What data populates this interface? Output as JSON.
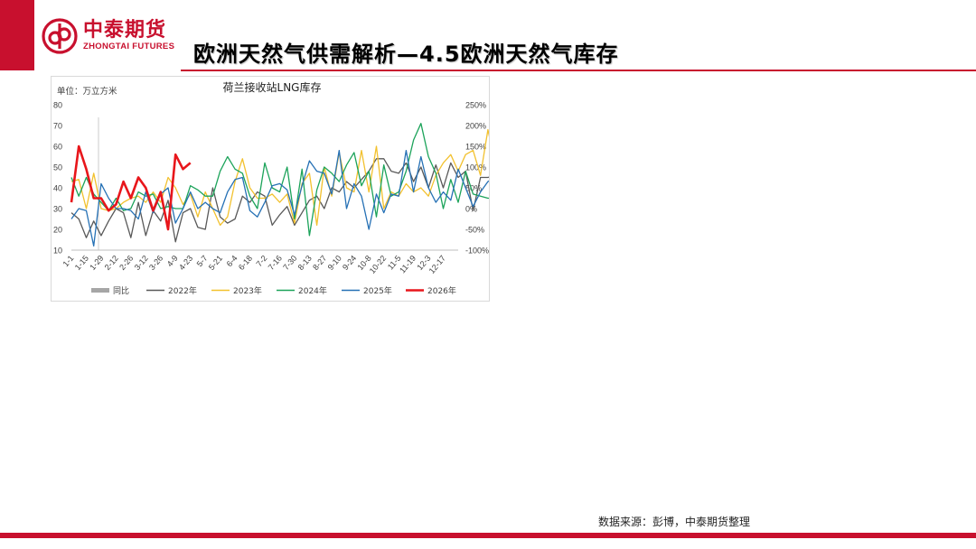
{
  "header": {
    "logo_cn": "中泰期货",
    "logo_en": "ZHONGTAI FUTURES",
    "title": "欧洲天然气供需解析—4.5欧洲天然气库存"
  },
  "colors": {
    "brand": "#c8102e",
    "yoy": "#a6a6a6",
    "s2022": "#595959",
    "s2023": "#f2c12e",
    "s2024": "#1ca35a",
    "s2025": "#2671b5",
    "s2026": "#e8161b"
  },
  "chart_data": {
    "type": "line",
    "title": "荷兰接收站LNG库存",
    "unit_label": "单位：万立方米",
    "y_left": {
      "min": 10,
      "max": 80,
      "ticks": [
        "80",
        "70",
        "60",
        "50",
        "40",
        "30",
        "20",
        "10"
      ]
    },
    "y_right": {
      "min": -100,
      "max": 250,
      "ticks": [
        "250%",
        "200%",
        "150%",
        "100%",
        "50%",
        "0%",
        "-50%",
        "-100%"
      ]
    },
    "x_ticks": [
      "1-1",
      "1-15",
      "1-29",
      "2-12",
      "2-26",
      "3-12",
      "3-26",
      "4-9",
      "4-23",
      "5-7",
      "5-21",
      "6-4",
      "6-18",
      "7-2",
      "7-16",
      "7-30",
      "8-13",
      "8-27",
      "9-10",
      "9-24",
      "10-8",
      "10-22",
      "11-5",
      "11-19",
      "12-3",
      "12-17"
    ],
    "legend": [
      "同比",
      "2022年",
      "2023年",
      "2024年",
      "2025年",
      "2026年"
    ],
    "series": [
      {
        "name": "2022年",
        "values": [
          28,
          25,
          16,
          24,
          17,
          24,
          30,
          28,
          16,
          33,
          17,
          29,
          24,
          34,
          14,
          28,
          30,
          21,
          20,
          40,
          26,
          23,
          25,
          36,
          33,
          38,
          36,
          22,
          27,
          31,
          22,
          28,
          34,
          36,
          30,
          40,
          38,
          43,
          40,
          44,
          48,
          54,
          54,
          48,
          47,
          52,
          43,
          50,
          40,
          51,
          40,
          52,
          45,
          48,
          29,
          45,
          45,
          46
        ]
      },
      {
        "name": "2023年",
        "values": [
          43,
          44,
          30,
          47,
          30,
          29,
          30,
          33,
          35,
          36,
          33,
          38,
          33,
          45,
          40,
          32,
          37,
          26,
          38,
          30,
          22,
          26,
          43,
          54,
          40,
          35,
          35,
          37,
          33,
          37,
          23,
          42,
          47,
          22,
          50,
          36,
          57,
          40,
          38,
          58,
          38,
          60,
          30,
          38,
          36,
          42,
          38,
          40,
          36,
          46,
          52,
          56,
          48,
          56,
          58,
          46,
          68,
          51,
          47,
          51,
          58,
          43
        ]
      },
      {
        "name": "2024年",
        "values": [
          45,
          36,
          45,
          37,
          33,
          29,
          35,
          29,
          30,
          38,
          36,
          37,
          30,
          31,
          30,
          30,
          41,
          39,
          36,
          36,
          48,
          55,
          49,
          47,
          36,
          30,
          52,
          40,
          38,
          50,
          25,
          49,
          17,
          39,
          50,
          47,
          43,
          51,
          57,
          41,
          48,
          26,
          51,
          36,
          38,
          48,
          63,
          71,
          55,
          47,
          30,
          44,
          33,
          48,
          37,
          36,
          35,
          35
        ]
      },
      {
        "name": "2025年",
        "values": [
          25,
          30,
          29,
          12,
          42,
          35,
          30,
          30,
          29,
          25,
          38,
          28,
          37,
          40,
          23,
          30,
          38,
          30,
          33,
          30,
          28,
          38,
          44,
          45,
          29,
          26,
          33,
          41,
          42,
          39,
          27,
          41,
          53,
          48,
          47,
          37,
          58,
          30,
          42,
          36,
          20,
          37,
          28,
          37,
          36,
          58,
          38,
          55,
          40,
          33,
          38,
          34,
          49,
          40,
          31,
          38,
          43,
          45
        ]
      },
      {
        "name": "2026年",
        "values": [
          33,
          60,
          49,
          35,
          35,
          29,
          32,
          43,
          35,
          45,
          40,
          29,
          38,
          20,
          56,
          49,
          52
        ]
      }
    ]
  },
  "footer": {
    "source": "数据来源：彭博，中泰期货整理"
  }
}
